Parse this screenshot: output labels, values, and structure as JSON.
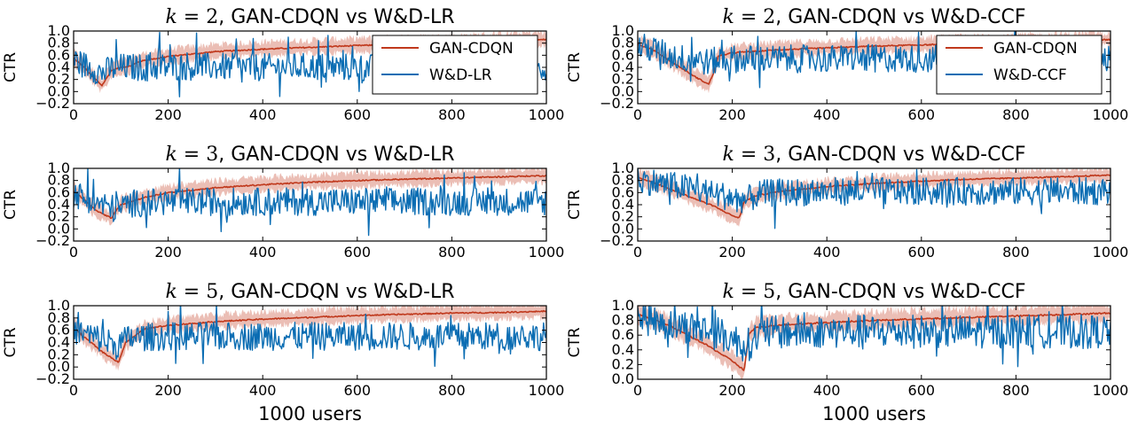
{
  "figure": {
    "xlabel": "1000 users"
  },
  "colors": {
    "gan": "#c0391d",
    "gan_band": "#e8b3a8",
    "wd": "#0b6db3"
  },
  "chart_data": [
    {
      "type": "line",
      "k": "2",
      "title_text": ", GAN-CDQN vs W&D-LR",
      "ylabel": "CTR",
      "xlabel": "",
      "xlim": [
        0,
        1000
      ],
      "ylim": [
        -0.2,
        1.0
      ],
      "xticks": [
        "0",
        "200",
        "400",
        "600",
        "800",
        "1000"
      ],
      "yticks": [
        "−0.2",
        "0.0",
        "0.2",
        "0.4",
        "0.6",
        "0.8",
        "1.0"
      ],
      "legend": {
        "show": true,
        "loc": "upper-right"
      },
      "series": [
        {
          "name": "GAN-CDQN",
          "kind": "gan",
          "x": [
            0,
            20,
            40,
            60,
            80,
            100,
            120,
            140,
            200,
            300,
            400,
            500,
            600,
            700,
            800,
            900,
            1000
          ],
          "y": [
            0.55,
            0.42,
            0.25,
            0.1,
            0.35,
            0.4,
            0.42,
            0.5,
            0.58,
            0.66,
            0.7,
            0.73,
            0.76,
            0.78,
            0.8,
            0.83,
            0.86
          ]
        },
        {
          "name": "W&D-LR",
          "kind": "wd",
          "x": [
            0,
            20,
            40,
            60,
            80,
            100,
            150,
            200,
            300,
            400,
            500,
            600,
            700,
            800,
            900,
            1000
          ],
          "y": [
            0.52,
            0.45,
            0.38,
            0.3,
            0.38,
            0.4,
            0.4,
            0.41,
            0.41,
            0.4,
            0.41,
            0.4,
            0.4,
            0.41,
            0.4,
            0.4
          ]
        }
      ]
    },
    {
      "type": "line",
      "k": "2",
      "title_text": ", GAN-CDQN vs W&D-CCF",
      "ylabel": "CTR",
      "xlabel": "",
      "xlim": [
        0,
        1000
      ],
      "ylim": [
        -0.2,
        1.0
      ],
      "xticks": [
        "0",
        "200",
        "400",
        "600",
        "800",
        "1000"
      ],
      "yticks": [
        "−0.2",
        "0.0",
        "0.2",
        "0.4",
        "0.6",
        "0.8",
        "1.0"
      ],
      "legend": {
        "show": true,
        "loc": "upper-right"
      },
      "series": [
        {
          "name": "GAN-CDQN",
          "kind": "gan",
          "x": [
            0,
            30,
            60,
            90,
            120,
            150,
            160,
            170,
            200,
            300,
            400,
            500,
            600,
            700,
            800,
            900,
            1000
          ],
          "y": [
            0.78,
            0.7,
            0.55,
            0.4,
            0.25,
            0.12,
            0.3,
            0.58,
            0.64,
            0.69,
            0.72,
            0.75,
            0.77,
            0.79,
            0.81,
            0.83,
            0.86
          ]
        },
        {
          "name": "W&D-CCF",
          "kind": "wd",
          "x": [
            0,
            30,
            60,
            90,
            120,
            150,
            170,
            200,
            300,
            400,
            500,
            600,
            700,
            800,
            900,
            1000
          ],
          "y": [
            0.75,
            0.7,
            0.62,
            0.55,
            0.55,
            0.48,
            0.52,
            0.54,
            0.54,
            0.54,
            0.55,
            0.54,
            0.54,
            0.55,
            0.54,
            0.54
          ]
        }
      ]
    },
    {
      "type": "line",
      "k": "3",
      "title_text": ", GAN-CDQN vs W&D-LR",
      "ylabel": "CTR",
      "xlabel": "",
      "xlim": [
        0,
        1000
      ],
      "ylim": [
        -0.2,
        1.0
      ],
      "xticks": [
        "0",
        "200",
        "400",
        "600",
        "800",
        "1000"
      ],
      "yticks": [
        "−0.2",
        "0.0",
        "0.2",
        "0.4",
        "0.6",
        "0.8",
        "1.0"
      ],
      "legend": {
        "show": false
      },
      "series": [
        {
          "name": "GAN-CDQN",
          "kind": "gan",
          "x": [
            0,
            20,
            40,
            60,
            80,
            90,
            100,
            150,
            200,
            300,
            400,
            500,
            600,
            700,
            800,
            900,
            1000
          ],
          "y": [
            0.62,
            0.5,
            0.35,
            0.25,
            0.18,
            0.3,
            0.4,
            0.52,
            0.6,
            0.68,
            0.73,
            0.77,
            0.8,
            0.82,
            0.84,
            0.86,
            0.88
          ]
        },
        {
          "name": "W&D-LR",
          "kind": "wd",
          "x": [
            0,
            30,
            60,
            90,
            120,
            200,
            300,
            400,
            500,
            600,
            700,
            800,
            900,
            1000
          ],
          "y": [
            0.58,
            0.5,
            0.4,
            0.32,
            0.42,
            0.45,
            0.45,
            0.45,
            0.45,
            0.45,
            0.45,
            0.45,
            0.45,
            0.45
          ]
        }
      ]
    },
    {
      "type": "line",
      "k": "3",
      "title_text": ", GAN-CDQN vs W&D-CCF",
      "ylabel": "CTR",
      "xlabel": "",
      "xlim": [
        0,
        1000
      ],
      "ylim": [
        -0.2,
        1.0
      ],
      "xticks": [
        "0",
        "200",
        "400",
        "600",
        "800",
        "1000"
      ],
      "yticks": [
        "−0.2",
        "0.0",
        "0.2",
        "0.4",
        "0.6",
        "0.8",
        "1.0"
      ],
      "legend": {
        "show": false
      },
      "series": [
        {
          "name": "GAN-CDQN",
          "kind": "gan",
          "x": [
            0,
            40,
            80,
            120,
            160,
            200,
            215,
            225,
            250,
            300,
            400,
            500,
            600,
            700,
            800,
            900,
            1000
          ],
          "y": [
            0.85,
            0.75,
            0.62,
            0.5,
            0.38,
            0.22,
            0.18,
            0.45,
            0.55,
            0.62,
            0.7,
            0.75,
            0.79,
            0.82,
            0.84,
            0.86,
            0.89
          ]
        },
        {
          "name": "W&D-CCF",
          "kind": "wd",
          "x": [
            0,
            50,
            100,
            150,
            200,
            230,
            260,
            300,
            400,
            500,
            600,
            700,
            800,
            900,
            1000
          ],
          "y": [
            0.82,
            0.75,
            0.68,
            0.6,
            0.52,
            0.48,
            0.58,
            0.6,
            0.62,
            0.62,
            0.62,
            0.62,
            0.62,
            0.62,
            0.62
          ]
        }
      ]
    },
    {
      "type": "line",
      "k": "5",
      "title_text": ", GAN-CDQN vs W&D-LR",
      "ylabel": "CTR",
      "xlabel": "1000 users",
      "xlim": [
        0,
        1000
      ],
      "ylim": [
        -0.2,
        1.0
      ],
      "xticks": [
        "0",
        "200",
        "400",
        "600",
        "800",
        "1000"
      ],
      "yticks": [
        "−0.2",
        "0.0",
        "0.2",
        "0.4",
        "0.6",
        "0.8",
        "1.0"
      ],
      "legend": {
        "show": false
      },
      "series": [
        {
          "name": "GAN-CDQN",
          "kind": "gan",
          "x": [
            0,
            20,
            40,
            60,
            80,
            95,
            110,
            150,
            200,
            300,
            400,
            500,
            600,
            700,
            800,
            900,
            1000
          ],
          "y": [
            0.65,
            0.5,
            0.38,
            0.25,
            0.15,
            0.08,
            0.4,
            0.62,
            0.68,
            0.74,
            0.78,
            0.81,
            0.84,
            0.86,
            0.88,
            0.89,
            0.91
          ]
        },
        {
          "name": "W&D-LR",
          "kind": "wd",
          "x": [
            0,
            30,
            60,
            90,
            120,
            200,
            300,
            400,
            500,
            600,
            700,
            800,
            900,
            1000
          ],
          "y": [
            0.6,
            0.52,
            0.45,
            0.35,
            0.48,
            0.5,
            0.5,
            0.5,
            0.5,
            0.5,
            0.5,
            0.5,
            0.5,
            0.5
          ]
        }
      ]
    },
    {
      "type": "line",
      "k": "5",
      "title_text": ", GAN-CDQN vs W&D-CCF",
      "ylabel": "CTR",
      "xlabel": "1000 users",
      "xlim": [
        0,
        1000
      ],
      "ylim": [
        0.0,
        1.0
      ],
      "xticks": [
        "0",
        "200",
        "400",
        "600",
        "800",
        "1000"
      ],
      "yticks": [
        "0.0",
        "0.2",
        "0.4",
        "0.6",
        "0.8",
        "1.0"
      ],
      "legend": {
        "show": false
      },
      "series": [
        {
          "name": "GAN-CDQN",
          "kind": "gan",
          "x": [
            0,
            50,
            100,
            150,
            200,
            225,
            235,
            250,
            300,
            400,
            500,
            600,
            700,
            800,
            900,
            1000
          ],
          "y": [
            0.88,
            0.78,
            0.62,
            0.45,
            0.25,
            0.12,
            0.62,
            0.7,
            0.74,
            0.77,
            0.8,
            0.82,
            0.84,
            0.86,
            0.88,
            0.9
          ]
        },
        {
          "name": "W&D-CCF",
          "kind": "wd",
          "x": [
            0,
            50,
            100,
            150,
            200,
            230,
            260,
            300,
            400,
            500,
            600,
            700,
            800,
            900,
            1000
          ],
          "y": [
            0.85,
            0.78,
            0.72,
            0.66,
            0.55,
            0.45,
            0.62,
            0.64,
            0.65,
            0.65,
            0.65,
            0.65,
            0.65,
            0.65,
            0.65
          ]
        }
      ]
    }
  ]
}
